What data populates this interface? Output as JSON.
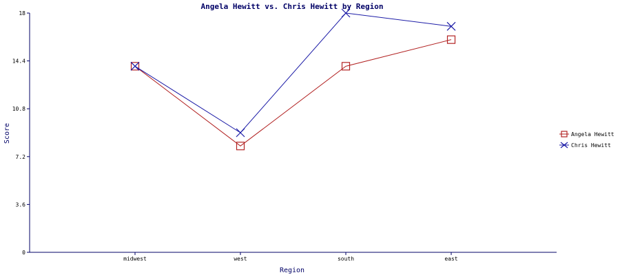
{
  "chart_data": {
    "type": "line",
    "title": "Angela Hewitt vs. Chris Hewitt by Region",
    "xlabel": "Region",
    "ylabel": "Score",
    "categories": [
      "midwest",
      "west",
      "south",
      "east"
    ],
    "ylim": [
      0,
      18
    ],
    "yticks": [
      "0",
      "3.6",
      "7.2",
      "10.8",
      "14.4",
      "18"
    ],
    "grid": false,
    "legend_position": "right",
    "series": [
      {
        "name": "Angela Hewitt",
        "values": [
          14,
          8,
          14,
          16
        ],
        "color": "#b22222",
        "marker": "square"
      },
      {
        "name": "Chris Hewitt",
        "values": [
          14,
          9,
          18,
          17
        ],
        "color": "#1a1aa6",
        "marker": "x"
      }
    ],
    "colors": {
      "axis": "#000066",
      "title": "#000066"
    }
  }
}
